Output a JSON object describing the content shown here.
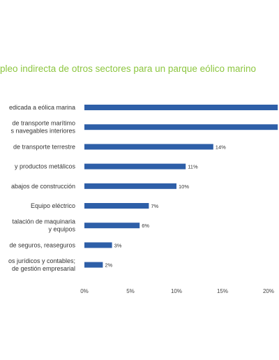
{
  "colors": {
    "bar": "#2e5fa8",
    "title": "#8cc63f",
    "text": "#333333"
  },
  "chart_data": {
    "type": "bar",
    "orientation": "horizontal",
    "title": "pleo indirecta de otros sectores para un parque eólico marino",
    "xlabel": "",
    "ylabel": "",
    "xlim": [
      0,
      20
    ],
    "grid": false,
    "legend": "none",
    "categories": [
      [
        "edicada a eólica marina"
      ],
      [
        "de transporte marítimo",
        "s navegables interiores"
      ],
      [
        "de transporte terrestre"
      ],
      [
        "y productos metálicos"
      ],
      [
        "abajos de construcción"
      ],
      [
        "Equipo eléctrico"
      ],
      [
        "talación de maquinaria",
        "y equipos"
      ],
      [
        "de seguros, reaseguros"
      ],
      [
        "os jurídicos y contables;",
        "de gestión empresarial"
      ]
    ],
    "values": [
      21,
      21,
      14,
      11,
      10,
      7,
      6,
      3,
      2
    ],
    "value_labels": [
      "",
      "",
      "14%",
      "11%",
      "10%",
      "7%",
      "6%",
      "3%",
      "2%"
    ],
    "x_ticks": [
      {
        "value": 0,
        "label": "0%"
      },
      {
        "value": 5,
        "label": "5%"
      },
      {
        "value": 10,
        "label": "10%"
      },
      {
        "value": 15,
        "label": "15%"
      },
      {
        "value": 20,
        "label": "20%"
      }
    ]
  }
}
